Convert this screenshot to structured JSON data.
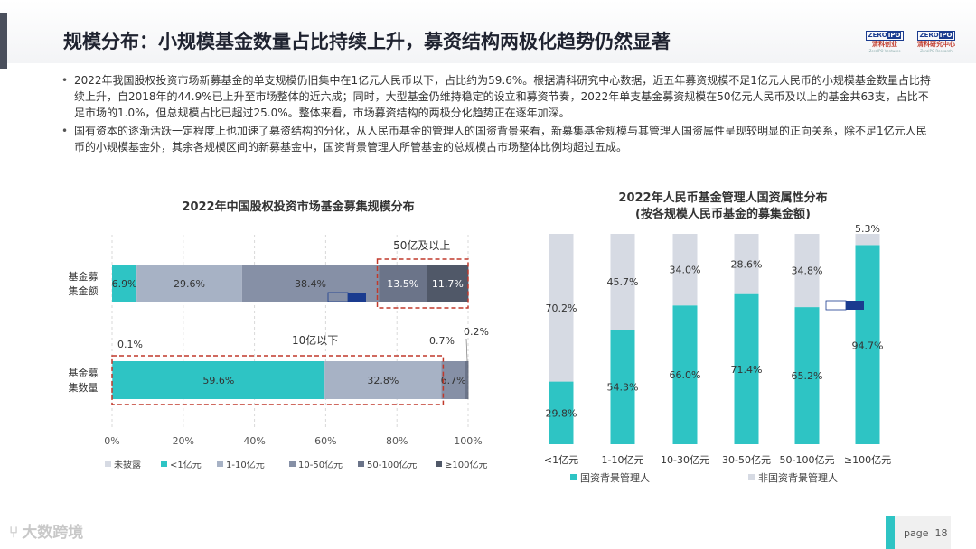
{
  "page": {
    "title": "规模分布：小规模基金数量占比持续上升，募资结构两极化趋势仍然显著",
    "page_label": "page",
    "page_number": "18",
    "footer_brand": "大数跨境",
    "logo_left": {
      "badge_a": "ZERO",
      "badge_b": "IPO",
      "cn": "清科创业",
      "en": "ZeroIPO Ventures"
    },
    "logo_right": {
      "badge_a": "ZERO",
      "badge_b": "IPO",
      "cn": "清科研究中心",
      "en": "ZeroIPO Research"
    }
  },
  "bullets": [
    "2022年我国股权投资市场新募基金的单支规模仍旧集中在1亿元人民币以下，占比约为59.6%。根据清科研究中心数据，近五年募资规模不足1亿元人民币的小规模基金数量占比持续上升，自2018年的44.9%已上升至市场整体的近六成；同时，大型基金仍维持稳定的设立和募资节奏，2022年单支基金募资规模在50亿元人民币及以上的基金共63支，占比不足市场的1.0%，但总规模占比已超过25.0%。整体来看，市场募资结构的两极分化趋势正在逐年加深。",
    "国有资本的逐渐活跃一定程度上也加速了募资结构的分化，从人民币基金的管理人的国资背景来看，新募集基金规模与其管理人国资属性呈现较明显的正向关系，除不足1亿元人民币的小规模基金外，其余各规模区间的新募基金中，国资背景管理人所管基金的总规模占市场整体比例均超过五成。"
  ],
  "chart_data": [
    {
      "type": "bar",
      "orientation": "horizontal-stacked",
      "title": "2022年中国股权投资市场基金募集规模分布",
      "categories": [
        "基金募集金额",
        "基金募集数量"
      ],
      "series": [
        {
          "name": "未披露",
          "color": "#d6dae3",
          "values": [
            0.0,
            0.1
          ]
        },
        {
          "name": "<1亿元",
          "color": "#2ec4c4",
          "values": [
            6.9,
            59.6
          ]
        },
        {
          "name": "1-10亿元",
          "color": "#a7b2c5",
          "values": [
            29.6,
            32.8
          ]
        },
        {
          "name": "10-50亿元",
          "color": "#8690a6",
          "values": [
            38.4,
            6.7
          ]
        },
        {
          "name": "50-100亿元",
          "color": "#6b7489",
          "values": [
            13.5,
            0.7
          ]
        },
        {
          "name": "≥100亿元",
          "color": "#505868",
          "values": [
            11.7,
            0.2
          ]
        }
      ],
      "bar_labels": [
        [
          "",
          "6.9%",
          "29.6%",
          "38.4%",
          "13.5%",
          "11.7%"
        ],
        [
          "",
          "59.6%",
          "32.8%",
          "6.7%",
          "",
          ""
        ]
      ],
      "outside_labels": [
        "0.1%",
        "0.7%",
        "0.2%"
      ],
      "annotations": [
        "50亿及以上",
        "10亿以下"
      ],
      "xlim": [
        0,
        100
      ],
      "xticks": [
        "0%",
        "20%",
        "40%",
        "60%",
        "80%",
        "100%"
      ],
      "legend": "bottom"
    },
    {
      "type": "bar",
      "orientation": "vertical-stacked",
      "title": "2022年人民币基金管理人国资属性分布",
      "subtitle": "(按各规模人民币基金的募集金额)",
      "categories": [
        "<1亿元",
        "1-10亿元",
        "10-30亿元",
        "30-50亿元",
        "50-100亿元",
        "≥100亿元"
      ],
      "series": [
        {
          "name": "国资背景管理人",
          "color": "#2ec4c4",
          "values": [
            29.8,
            54.3,
            66.0,
            71.4,
            65.2,
            94.7
          ]
        },
        {
          "name": "非国资背景管理人",
          "color": "#d6dae3",
          "values": [
            70.2,
            45.7,
            34.0,
            28.6,
            34.8,
            5.3
          ]
        }
      ],
      "labels": [
        [
          "29.8%",
          "54.3%",
          "66.0%",
          "71.4%",
          "65.2%",
          "94.7%"
        ],
        [
          "70.2%",
          "45.7%",
          "34.0%",
          "28.6%",
          "34.8%",
          "5.3%"
        ]
      ],
      "ylim": [
        0,
        100
      ],
      "legend": "bottom"
    }
  ]
}
